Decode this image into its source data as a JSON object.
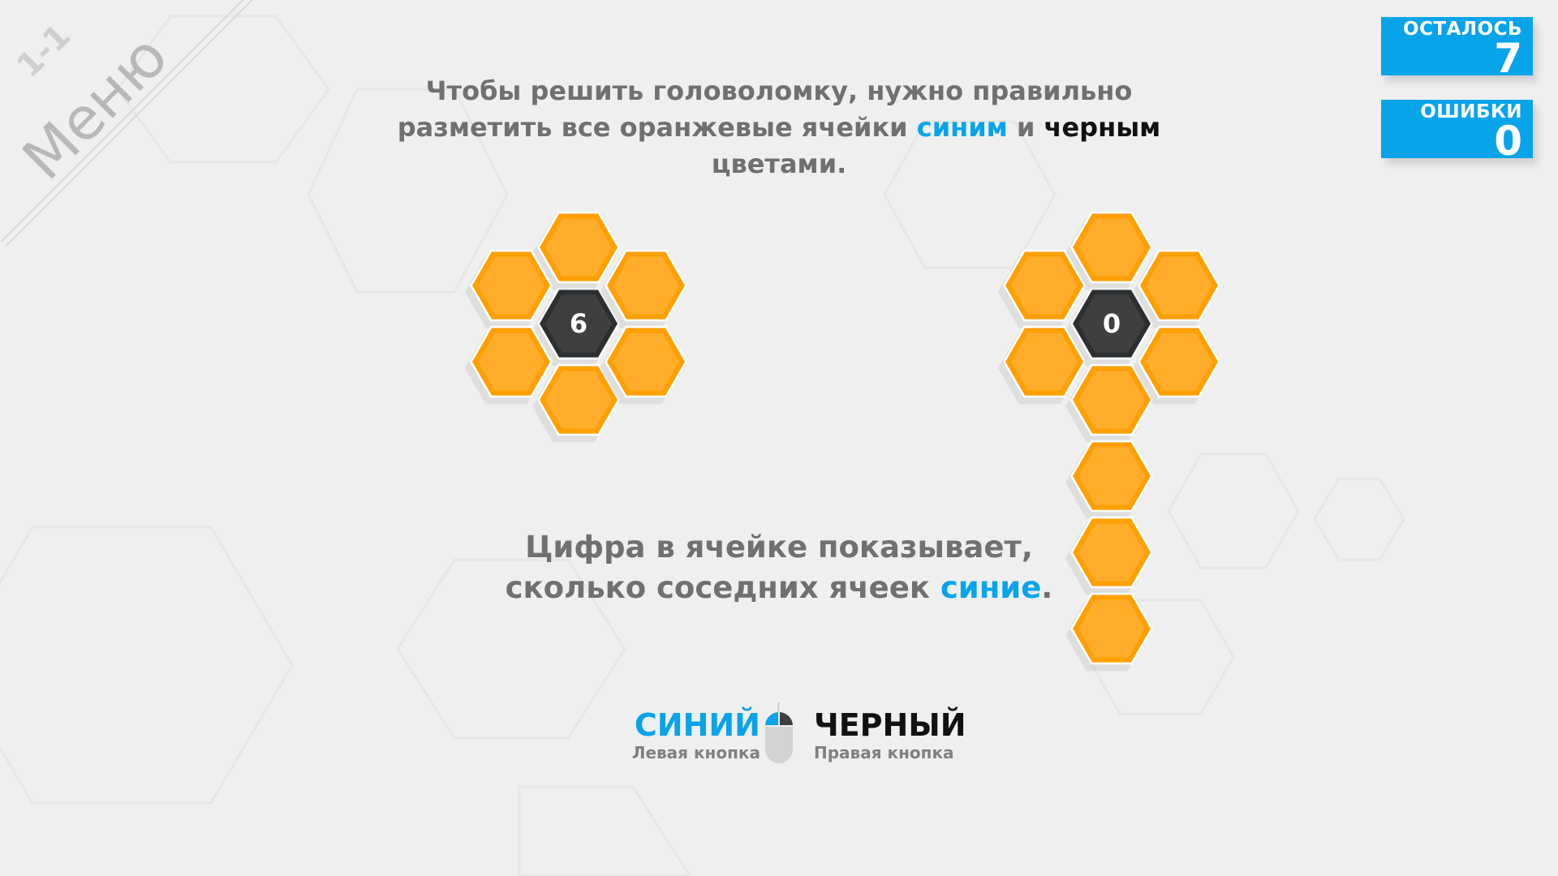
{
  "corner": {
    "level": "1-1",
    "menu_label": "Меню"
  },
  "stats": [
    {
      "label": "ОСТАЛОСЬ",
      "value": "7"
    },
    {
      "label": "ОШИБКИ",
      "value": "0"
    }
  ],
  "intro": {
    "text1": "Чтобы решить головоломку, нужно правильно разметить все оранжевые ячейки ",
    "blue_word": "синим",
    "and": " и ",
    "black_word": "черным",
    "text2": " цветами."
  },
  "hint": {
    "text1": "Цифра в ячейке показывает, сколько соседних ячеек ",
    "blue_word": "синие",
    "text2": "."
  },
  "controls": {
    "left": {
      "title": "СИНИЙ",
      "subtitle": "Левая кнопка"
    },
    "right": {
      "title": "ЧЕРНЫЙ",
      "subtitle": "Правая кнопка"
    }
  },
  "colors": {
    "orange": "#ffad2a",
    "orange_border": "#ff9f00",
    "dark": "#3f3f3f",
    "dark_border": "#2c2f31",
    "blue": "#07a4e9"
  },
  "puzzles": [
    {
      "center_number": "6",
      "cells": [
        {
          "type": "number",
          "value": "6",
          "col": 0,
          "row": 0
        },
        {
          "type": "orange",
          "col": 0,
          "row": -1
        },
        {
          "type": "orange",
          "col": 0,
          "row": 1
        },
        {
          "type": "orange",
          "col": -1,
          "row": -0.5
        },
        {
          "type": "orange",
          "col": -1,
          "row": 0.5
        },
        {
          "type": "orange",
          "col": 1,
          "row": -0.5
        },
        {
          "type": "orange",
          "col": 1,
          "row": 0.5
        }
      ]
    },
    {
      "center_number": "0",
      "cells": [
        {
          "type": "number",
          "value": "0",
          "col": 0,
          "row": 0
        },
        {
          "type": "orange",
          "col": 0,
          "row": -1
        },
        {
          "type": "orange",
          "col": 0,
          "row": 1
        },
        {
          "type": "orange",
          "col": -1,
          "row": -0.5
        },
        {
          "type": "orange",
          "col": -1,
          "row": 0.5
        },
        {
          "type": "orange",
          "col": 1,
          "row": -0.5
        },
        {
          "type": "orange",
          "col": 1,
          "row": 0.5
        },
        {
          "type": "orange",
          "col": 0,
          "row": 2
        },
        {
          "type": "orange",
          "col": 0,
          "row": 3
        },
        {
          "type": "orange",
          "col": 0,
          "row": 4
        }
      ]
    }
  ]
}
